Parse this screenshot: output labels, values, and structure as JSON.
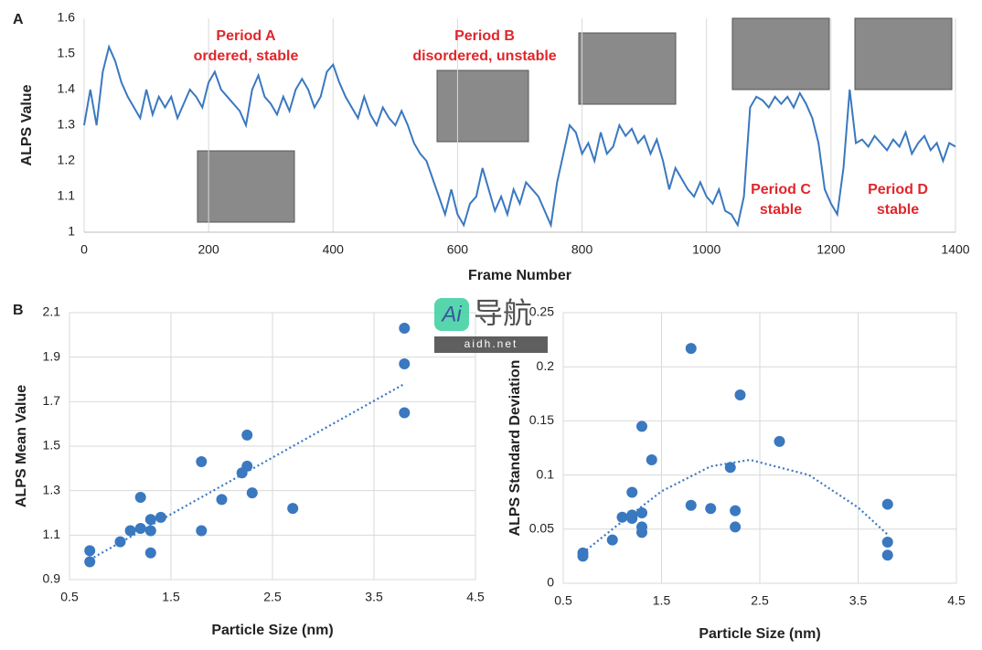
{
  "watermark": {
    "logo": "Ai",
    "title": "导航",
    "url": "aidh.net"
  },
  "chart_data": [
    {
      "type": "line",
      "panel_label": "A",
      "x_label": "Frame Number",
      "y_label": "ALPS Value",
      "xlim": [
        0,
        1400
      ],
      "xticks": [
        0,
        200,
        400,
        600,
        800,
        1000,
        1200,
        1400
      ],
      "ylim": [
        1,
        1.6
      ],
      "yticks": [
        1,
        1.1,
        1.2,
        1.3,
        1.4,
        1.5,
        1.6
      ],
      "grid": "x",
      "annotations": [
        "Period A",
        "ordered, stable",
        "Period B",
        "disordered, unstable",
        "Period C",
        "stable",
        "Period D",
        "stable"
      ],
      "annotation_color": "#e0262b",
      "series": [
        {
          "color": "#3a78c0",
          "x": [
            0,
            10,
            20,
            30,
            40,
            50,
            60,
            70,
            80,
            90,
            100,
            110,
            120,
            130,
            140,
            150,
            160,
            170,
            180,
            190,
            200,
            210,
            220,
            230,
            240,
            250,
            260,
            270,
            280,
            290,
            300,
            310,
            320,
            330,
            340,
            350,
            360,
            370,
            380,
            390,
            400,
            410,
            420,
            430,
            440,
            450,
            460,
            470,
            480,
            490,
            500,
            510,
            520,
            530,
            540,
            550,
            560,
            570,
            580,
            590,
            600,
            610,
            620,
            630,
            640,
            650,
            660,
            670,
            680,
            690,
            700,
            710,
            720,
            730,
            740,
            750,
            760,
            770,
            780,
            790,
            800,
            810,
            820,
            830,
            840,
            850,
            860,
            870,
            880,
            890,
            900,
            910,
            920,
            930,
            940,
            950,
            960,
            970,
            980,
            990,
            1000,
            1010,
            1020,
            1030,
            1040,
            1050,
            1060,
            1070,
            1080,
            1090,
            1100,
            1110,
            1120,
            1130,
            1140,
            1150,
            1160,
            1170,
            1180,
            1190,
            1200,
            1210,
            1220,
            1230,
            1240,
            1250,
            1260,
            1270,
            1280,
            1290,
            1300,
            1310,
            1320,
            1330,
            1340,
            1350,
            1360,
            1370,
            1380,
            1390,
            1400
          ],
          "values": [
            1.3,
            1.4,
            1.3,
            1.45,
            1.52,
            1.48,
            1.42,
            1.38,
            1.35,
            1.32,
            1.4,
            1.33,
            1.38,
            1.35,
            1.38,
            1.32,
            1.36,
            1.4,
            1.38,
            1.35,
            1.42,
            1.45,
            1.4,
            1.38,
            1.36,
            1.34,
            1.3,
            1.4,
            1.44,
            1.38,
            1.36,
            1.33,
            1.38,
            1.34,
            1.4,
            1.43,
            1.4,
            1.35,
            1.38,
            1.45,
            1.47,
            1.42,
            1.38,
            1.35,
            1.32,
            1.38,
            1.33,
            1.3,
            1.35,
            1.32,
            1.3,
            1.34,
            1.3,
            1.25,
            1.22,
            1.2,
            1.15,
            1.1,
            1.05,
            1.12,
            1.05,
            1.02,
            1.08,
            1.1,
            1.18,
            1.12,
            1.06,
            1.1,
            1.05,
            1.12,
            1.08,
            1.14,
            1.12,
            1.1,
            1.06,
            1.02,
            1.14,
            1.22,
            1.3,
            1.28,
            1.22,
            1.25,
            1.2,
            1.28,
            1.22,
            1.24,
            1.3,
            1.27,
            1.29,
            1.25,
            1.27,
            1.22,
            1.26,
            1.2,
            1.12,
            1.18,
            1.15,
            1.12,
            1.1,
            1.14,
            1.1,
            1.08,
            1.12,
            1.06,
            1.05,
            1.02,
            1.1,
            1.35,
            1.38,
            1.37,
            1.35,
            1.38,
            1.36,
            1.38,
            1.35,
            1.39,
            1.36,
            1.32,
            1.25,
            1.12,
            1.08,
            1.05,
            1.18,
            1.4,
            1.25,
            1.26,
            1.24,
            1.27,
            1.25,
            1.23,
            1.26,
            1.24,
            1.28,
            1.22,
            1.25,
            1.27,
            1.23,
            1.25,
            1.2,
            1.25,
            1.24
          ]
        }
      ]
    },
    {
      "type": "scatter",
      "panel_label": "B",
      "x_label": "Particle Size (nm)",
      "y_label": "ALPS Mean Value",
      "xlim": [
        0.5,
        4.5
      ],
      "xticks": [
        0.5,
        1.5,
        2.5,
        3.5,
        4.5
      ],
      "ylim": [
        0.9,
        2.1
      ],
      "yticks": [
        0.9,
        1.1,
        1.3,
        1.5,
        1.7,
        1.9,
        2.1
      ],
      "grid": "xy",
      "series": [
        {
          "color": "#3a78c0",
          "x": [
            0.7,
            0.7,
            1.0,
            1.1,
            1.2,
            1.2,
            1.3,
            1.3,
            1.3,
            1.4,
            1.8,
            1.8,
            2.0,
            2.2,
            2.25,
            2.25,
            2.3,
            2.7,
            3.8,
            3.8,
            3.8
          ],
          "values": [
            1.03,
            0.98,
            1.07,
            1.12,
            1.27,
            1.13,
            1.17,
            1.12,
            1.02,
            1.18,
            1.43,
            1.12,
            1.26,
            1.38,
            1.55,
            1.41,
            1.29,
            1.22,
            2.03,
            1.87,
            1.65
          ]
        }
      ],
      "trendline": {
        "color": "#3a78c0",
        "x": [
          0.7,
          3.8
        ],
        "values": [
          0.99,
          1.78
        ]
      }
    },
    {
      "type": "scatter",
      "x_label": "Particle Size (nm)",
      "y_label": "ALPS Standard Deviation",
      "xlim": [
        0.5,
        4.5
      ],
      "xticks": [
        0.5,
        1.5,
        2.5,
        3.5,
        4.5
      ],
      "ylim": [
        0,
        0.25
      ],
      "yticks": [
        0,
        0.05,
        0.1,
        0.15,
        0.2,
        0.25
      ],
      "grid": "xy",
      "series": [
        {
          "color": "#3a78c0",
          "x": [
            0.7,
            0.7,
            1.0,
            1.1,
            1.2,
            1.2,
            1.2,
            1.3,
            1.3,
            1.3,
            1.3,
            1.4,
            1.8,
            1.8,
            2.0,
            2.2,
            2.25,
            2.25,
            2.3,
            2.7,
            3.8,
            3.8,
            3.8
          ],
          "values": [
            0.028,
            0.025,
            0.04,
            0.061,
            0.084,
            0.063,
            0.06,
            0.145,
            0.065,
            0.052,
            0.047,
            0.114,
            0.217,
            0.072,
            0.069,
            0.107,
            0.067,
            0.052,
            0.174,
            0.131,
            0.073,
            0.038,
            0.026
          ]
        }
      ],
      "trendline": {
        "color": "#3a78c0",
        "x": [
          0.7,
          1.0,
          1.5,
          2.0,
          2.4,
          3.0,
          3.5,
          3.8
        ],
        "values": [
          0.028,
          0.05,
          0.085,
          0.108,
          0.114,
          0.1,
          0.07,
          0.045
        ]
      }
    }
  ]
}
